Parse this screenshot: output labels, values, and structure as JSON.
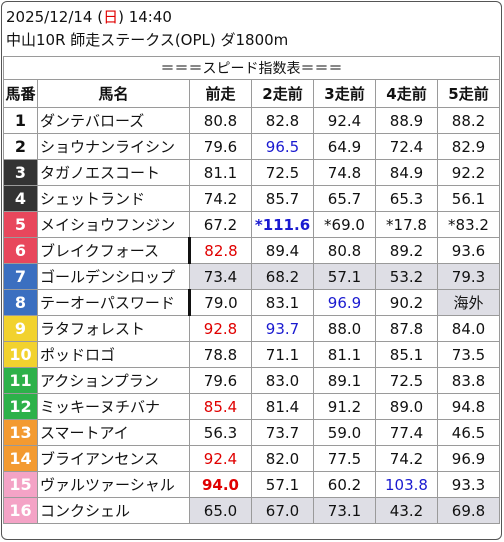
{
  "header": {
    "date_time_prefix": "2025/12/14 (",
    "day": "日",
    "date_time_suffix": ") 14:40",
    "race": "中山10R 師走ステークス(OPL) ダ1800m"
  },
  "table_title": "＝＝＝スピード指数表＝＝＝",
  "columns": [
    "馬番",
    "馬名",
    "前走",
    "2走前",
    "3走前",
    "4走前",
    "5走前"
  ],
  "colors": {
    "frame_1": "#ffffff",
    "frame_2": "#ffffff",
    "frame_3": "#333333",
    "frame_4": "#333333",
    "frame_5": "#e8475c",
    "frame_6": "#e8475c",
    "frame_7": "#3b6fc0",
    "frame_8": "#3b6fc0",
    "frame_9": "#f2d22e",
    "frame_10": "#f2d22e",
    "frame_11": "#2db14a",
    "frame_12": "#2db14a",
    "frame_13": "#f39a31",
    "frame_14": "#f39a31",
    "frame_15": "#f4a3c6",
    "frame_16": "#f4a3c6",
    "highlight_grey": "#dedee5",
    "text_red": "#e00000",
    "text_blue": "#1a1ad0"
  },
  "rows": [
    {
      "num": "1",
      "name": "ダンテバローズ",
      "v": [
        "80.8",
        "82.8",
        "92.4",
        "88.9",
        "88.2"
      ]
    },
    {
      "num": "2",
      "name": "ショウナンライシン",
      "v": [
        "79.6",
        "96.5",
        "64.9",
        "72.4",
        "82.9"
      ]
    },
    {
      "num": "3",
      "name": "タガノエスコート",
      "v": [
        "81.1",
        "72.5",
        "74.8",
        "84.9",
        "92.2"
      ]
    },
    {
      "num": "4",
      "name": "シェットランド",
      "v": [
        "74.2",
        "85.7",
        "65.7",
        "65.3",
        "56.1"
      ]
    },
    {
      "num": "5",
      "name": "メイショウフンジン",
      "v": [
        "67.2",
        "*111.6",
        "*69.0",
        "*17.8",
        "*83.2"
      ]
    },
    {
      "num": "6",
      "name": "ブレイクフォース",
      "v": [
        "82.8",
        "89.4",
        "80.8",
        "89.2",
        "93.6"
      ]
    },
    {
      "num": "7",
      "name": "ゴールデンシロップ",
      "v": [
        "73.4",
        "68.2",
        "57.1",
        "53.2",
        "79.3"
      ]
    },
    {
      "num": "8",
      "name": "テーオーパスワード",
      "v": [
        "79.0",
        "83.1",
        "96.9",
        "90.2",
        "海外"
      ]
    },
    {
      "num": "9",
      "name": "ラタフォレスト",
      "v": [
        "92.8",
        "93.7",
        "88.0",
        "87.8",
        "84.0"
      ]
    },
    {
      "num": "10",
      "name": "ポッドロゴ",
      "v": [
        "78.8",
        "71.1",
        "81.1",
        "85.1",
        "73.5"
      ]
    },
    {
      "num": "11",
      "name": "アクションプラン",
      "v": [
        "79.6",
        "83.0",
        "89.1",
        "72.5",
        "83.8"
      ]
    },
    {
      "num": "12",
      "name": "ミッキーヌチバナ",
      "v": [
        "85.4",
        "81.4",
        "91.2",
        "89.0",
        "94.8"
      ]
    },
    {
      "num": "13",
      "name": "スマートアイ",
      "v": [
        "56.3",
        "73.7",
        "59.0",
        "77.4",
        "46.5"
      ]
    },
    {
      "num": "14",
      "name": "ブライアンセンス",
      "v": [
        "92.4",
        "82.0",
        "77.5",
        "74.2",
        "96.9"
      ]
    },
    {
      "num": "15",
      "name": "ヴァルツァーシャル",
      "v": [
        "94.0",
        "57.1",
        "60.2",
        "103.8",
        "93.3"
      ]
    },
    {
      "num": "16",
      "name": "コンクシェル",
      "v": [
        "65.0",
        "67.0",
        "73.1",
        "43.2",
        "69.8"
      ]
    }
  ]
}
